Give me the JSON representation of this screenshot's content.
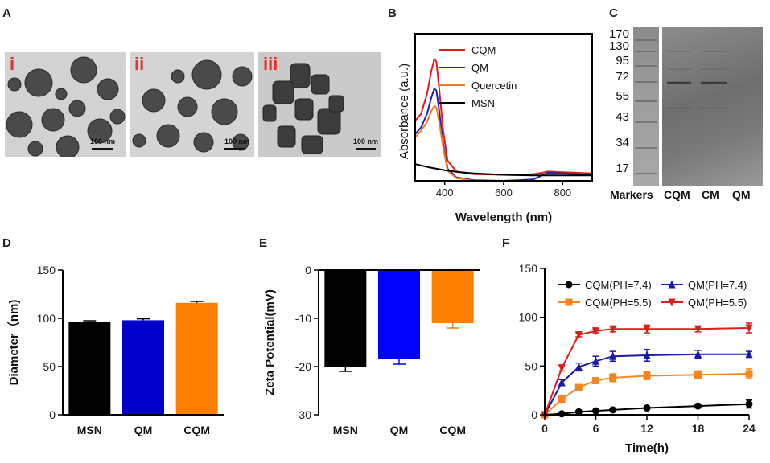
{
  "panels": {
    "A": {
      "letter": "A",
      "images": [
        {
          "label": "i",
          "scale": "100 nm"
        },
        {
          "label": "ii",
          "scale": "100 nm"
        },
        {
          "label": "iii",
          "scale": "100 nm"
        }
      ]
    },
    "C": {
      "letter": "C",
      "markers": [
        "170",
        "130",
        "95",
        "72",
        "55",
        "43",
        "34",
        "17"
      ],
      "lanes": [
        "Markers",
        "CQM",
        "CM",
        "QM"
      ]
    }
  },
  "chart_data": [
    {
      "panel": "B",
      "type": "line",
      "xlabel": "Wavelength (nm)",
      "ylabel": "Absorbance (a.u.)",
      "xlim": [
        300,
        900
      ],
      "ylim": [
        0,
        2.2
      ],
      "xticks": [
        400,
        600,
        800
      ],
      "legend": "top-center",
      "series": [
        {
          "name": "CQM",
          "color": "#e31a1c",
          "x": [
            300,
            320,
            340,
            355,
            365,
            372,
            380,
            395,
            410,
            440,
            500,
            600,
            700,
            730,
            750,
            800,
            850,
            900
          ],
          "y": [
            0.9,
            1.0,
            1.3,
            1.65,
            1.82,
            1.78,
            1.45,
            0.75,
            0.3,
            0.14,
            0.1,
            0.09,
            0.1,
            0.12,
            0.14,
            0.13,
            0.12,
            0.11
          ]
        },
        {
          "name": "QM",
          "color": "#1f1fbf",
          "x": [
            300,
            320,
            340,
            355,
            365,
            372,
            380,
            395,
            410,
            440,
            500,
            600,
            700,
            730,
            750,
            800,
            850,
            900
          ],
          "y": [
            0.7,
            0.8,
            1.0,
            1.25,
            1.38,
            1.35,
            1.1,
            0.55,
            0.18,
            0.05,
            0.01,
            0.0,
            0.02,
            0.08,
            0.12,
            0.11,
            0.1,
            0.09
          ]
        },
        {
          "name": "Quercetin",
          "color": "#f07a1a",
          "x": [
            300,
            320,
            340,
            355,
            365,
            372,
            380,
            395,
            410,
            440,
            500,
            600,
            700,
            800,
            900
          ],
          "y": [
            0.65,
            0.75,
            0.88,
            1.05,
            1.12,
            1.1,
            0.92,
            0.5,
            0.15,
            0.04,
            0.0,
            0.0,
            0.0,
            0.0,
            0.0
          ]
        },
        {
          "name": "MSN",
          "color": "#000000",
          "x": [
            300,
            350,
            400,
            450,
            500,
            600,
            700,
            800,
            900
          ],
          "y": [
            0.25,
            0.2,
            0.16,
            0.13,
            0.11,
            0.09,
            0.08,
            0.08,
            0.08
          ]
        }
      ]
    },
    {
      "panel": "D",
      "type": "bar",
      "ylabel": "Diameter（nm)",
      "categories": [
        "MSN",
        "QM",
        "CQM"
      ],
      "values": [
        96,
        98,
        116
      ],
      "errors": [
        1.5,
        1.5,
        1.5
      ],
      "colors": [
        "#000000",
        "#0000cc",
        "#ff8000"
      ],
      "ylim": [
        0,
        150
      ],
      "yticks": [
        0,
        50,
        100,
        150
      ]
    },
    {
      "panel": "E",
      "type": "bar",
      "ylabel": "Zeta Potential(mV)",
      "categories": [
        "MSN",
        "QM",
        "CQM"
      ],
      "values": [
        -20,
        -18.5,
        -11
      ],
      "errors": [
        1,
        1,
        1
      ],
      "colors": [
        "#000000",
        "#0000ff",
        "#ff8000"
      ],
      "ylim": [
        -30,
        0
      ],
      "yticks": [
        0,
        -10,
        -20,
        -30
      ]
    },
    {
      "panel": "F",
      "type": "line",
      "xlabel": "Time(h)",
      "ylabel": "",
      "xlim": [
        0,
        24
      ],
      "ylim": [
        0,
        150
      ],
      "xticks": [
        0,
        6,
        12,
        18,
        24
      ],
      "yticks": [
        0,
        50,
        100,
        150
      ],
      "x": [
        0,
        2,
        4,
        6,
        8,
        12,
        18,
        24
      ],
      "legend": "top",
      "series": [
        {
          "name": "CQM(PH=7.4)",
          "color": "#000000",
          "marker": "circle",
          "values": [
            0,
            1,
            3,
            4,
            5,
            7,
            9,
            11
          ],
          "errors": [
            0,
            0.5,
            0.8,
            1,
            1,
            1.5,
            2,
            4
          ]
        },
        {
          "name": "QM(PH=7.4)",
          "color": "#1a1aa8",
          "marker": "triangle-up",
          "values": [
            0,
            33,
            49,
            55,
            60,
            61,
            62,
            62
          ],
          "errors": [
            0,
            3,
            4,
            5,
            5,
            6,
            4,
            3
          ]
        },
        {
          "name": "CQM(PH=5.5)",
          "color": "#f5851f",
          "marker": "square",
          "values": [
            0,
            16,
            28,
            35,
            38,
            40,
            41,
            42
          ],
          "errors": [
            0,
            2,
            2,
            3,
            4,
            4,
            4,
            5
          ]
        },
        {
          "name": "QM(PH=5.5)",
          "color": "#dd1c1c",
          "marker": "triangle-down",
          "values": [
            0,
            48,
            82,
            86,
            88,
            88,
            88,
            89
          ],
          "errors": [
            0,
            3,
            2,
            2,
            3,
            4,
            3,
            5
          ]
        }
      ]
    }
  ]
}
